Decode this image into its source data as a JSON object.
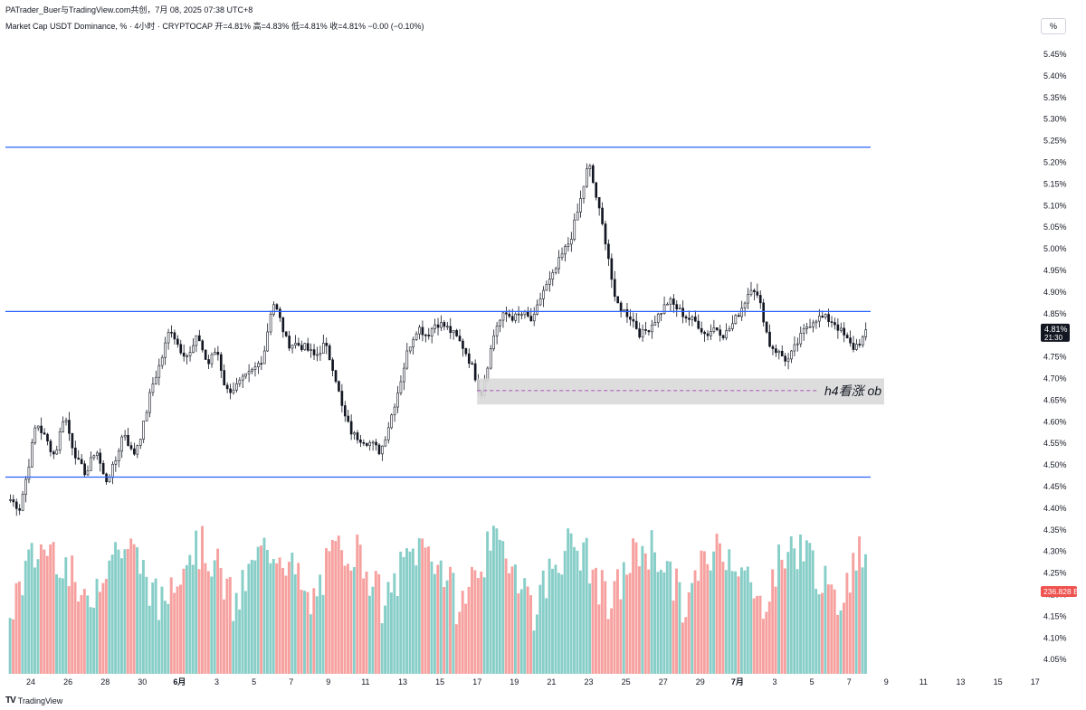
{
  "header": {
    "line1": "PATrader_Buer与TradingView.com共创，7月 08, 2025 07:38 UTC+8",
    "line2": "Market Cap USDT Dominance, % · 4小时 · CRYPTOCAP  开=4.81%  高=4.83%  低=4.81%  收=4.81%  −0.00 (−0.10%)"
  },
  "footer": {
    "brand": "TradingView",
    "logo_glyph": "TV"
  },
  "unit_label": "%",
  "colors": {
    "line": "#2962ff",
    "up_vol": "#26a69a",
    "down_vol": "#ef5350",
    "candle": "#131722",
    "zone": "#d9d9d9",
    "dashed": "#9c27b0",
    "price_tag": "#131722",
    "vol_tag": "#ef5350"
  },
  "chart_data": {
    "type": "candlestick",
    "symbol": "Market Cap USDT Dominance",
    "interval": "4小时",
    "exchange": "CRYPTOCAP",
    "ohlc_last": {
      "open": 4.81,
      "high": 4.83,
      "low": 4.81,
      "close": 4.81,
      "change": "−0.00",
      "change_pct": "−0.10%"
    },
    "ylim": [
      4.025,
      5.5
    ],
    "y_ticks": [
      "5.45%",
      "5.40%",
      "5.35%",
      "5.30%",
      "5.25%",
      "5.20%",
      "5.15%",
      "5.10%",
      "5.05%",
      "5.00%",
      "4.95%",
      "4.90%",
      "4.85%",
      "4.80%",
      "4.75%",
      "4.70%",
      "4.65%",
      "4.60%",
      "4.55%",
      "4.50%",
      "4.45%",
      "4.40%",
      "4.35%",
      "4.30%",
      "4.25%",
      "4.20%",
      "4.15%",
      "4.10%",
      "4.05%"
    ],
    "x_ticks": [
      {
        "label": "24",
        "day": 24
      },
      {
        "label": "26",
        "day": 26
      },
      {
        "label": "28",
        "day": 28
      },
      {
        "label": "30",
        "day": 30
      },
      {
        "label": "6月",
        "day": 32,
        "bold": true
      },
      {
        "label": "3",
        "day": 34
      },
      {
        "label": "5",
        "day": 36
      },
      {
        "label": "7",
        "day": 38
      },
      {
        "label": "9",
        "day": 40
      },
      {
        "label": "11",
        "day": 42
      },
      {
        "label": "13",
        "day": 44
      },
      {
        "label": "15",
        "day": 46
      },
      {
        "label": "17",
        "day": 48
      },
      {
        "label": "19",
        "day": 50
      },
      {
        "label": "21",
        "day": 52
      },
      {
        "label": "23",
        "day": 54
      },
      {
        "label": "25",
        "day": 56
      },
      {
        "label": "27",
        "day": 58
      },
      {
        "label": "29",
        "day": 60
      },
      {
        "label": "7月",
        "day": 62,
        "bold": true
      },
      {
        "label": "3",
        "day": 64
      },
      {
        "label": "5",
        "day": 66
      },
      {
        "label": "7",
        "day": 68
      },
      {
        "label": "9",
        "day": 70
      },
      {
        "label": "11",
        "day": 72
      },
      {
        "label": "13",
        "day": 74
      },
      {
        "label": "15",
        "day": 76
      },
      {
        "label": "17",
        "day": 78
      }
    ],
    "day_range": [
      22.7,
      79
    ],
    "series": [
      {
        "day": 22.9,
        "close": 4.42
      },
      {
        "day": 23.4,
        "close": 4.4
      },
      {
        "day": 23.8,
        "close": 4.48
      },
      {
        "day": 24.3,
        "close": 4.6
      },
      {
        "day": 24.8,
        "close": 4.56
      },
      {
        "day": 25.3,
        "close": 4.52
      },
      {
        "day": 25.8,
        "close": 4.62
      },
      {
        "day": 26.2,
        "close": 4.55
      },
      {
        "day": 26.6,
        "close": 4.5
      },
      {
        "day": 27.0,
        "close": 4.48
      },
      {
        "day": 27.5,
        "close": 4.54
      },
      {
        "day": 28.0,
        "close": 4.46
      },
      {
        "day": 28.5,
        "close": 4.5
      },
      {
        "day": 29.0,
        "close": 4.58
      },
      {
        "day": 29.5,
        "close": 4.52
      },
      {
        "day": 30.0,
        "close": 4.58
      },
      {
        "day": 30.5,
        "close": 4.68
      },
      {
        "day": 31.0,
        "close": 4.74
      },
      {
        "day": 31.5,
        "close": 4.82
      },
      {
        "day": 32.0,
        "close": 4.77
      },
      {
        "day": 32.5,
        "close": 4.75
      },
      {
        "day": 33.0,
        "close": 4.8
      },
      {
        "day": 33.5,
        "close": 4.73
      },
      {
        "day": 34.0,
        "close": 4.77
      },
      {
        "day": 34.5,
        "close": 4.67
      },
      {
        "day": 35.0,
        "close": 4.68
      },
      {
        "day": 35.5,
        "close": 4.7
      },
      {
        "day": 36.0,
        "close": 4.72
      },
      {
        "day": 36.5,
        "close": 4.75
      },
      {
        "day": 37.0,
        "close": 4.88
      },
      {
        "day": 37.3,
        "close": 4.85
      },
      {
        "day": 37.8,
        "close": 4.78
      },
      {
        "day": 38.3,
        "close": 4.78
      },
      {
        "day": 38.8,
        "close": 4.77
      },
      {
        "day": 39.3,
        "close": 4.75
      },
      {
        "day": 39.8,
        "close": 4.78
      },
      {
        "day": 40.3,
        "close": 4.72
      },
      {
        "day": 40.8,
        "close": 4.62
      },
      {
        "day": 41.3,
        "close": 4.57
      },
      {
        "day": 41.8,
        "close": 4.56
      },
      {
        "day": 42.3,
        "close": 4.55
      },
      {
        "day": 42.8,
        "close": 4.53
      },
      {
        "day": 43.3,
        "close": 4.6
      },
      {
        "day": 43.8,
        "close": 4.68
      },
      {
        "day": 44.3,
        "close": 4.77
      },
      {
        "day": 44.8,
        "close": 4.82
      },
      {
        "day": 45.3,
        "close": 4.8
      },
      {
        "day": 45.8,
        "close": 4.83
      },
      {
        "day": 46.3,
        "close": 4.82
      },
      {
        "day": 46.8,
        "close": 4.8
      },
      {
        "day": 47.3,
        "close": 4.77
      },
      {
        "day": 47.8,
        "close": 4.72
      },
      {
        "day": 48.2,
        "close": 4.66
      },
      {
        "day": 48.6,
        "close": 4.74
      },
      {
        "day": 49.0,
        "close": 4.82
      },
      {
        "day": 49.5,
        "close": 4.85
      },
      {
        "day": 50.0,
        "close": 4.84
      },
      {
        "day": 50.5,
        "close": 4.85
      },
      {
        "day": 51.0,
        "close": 4.83
      },
      {
        "day": 51.5,
        "close": 4.9
      },
      {
        "day": 52.0,
        "close": 4.93
      },
      {
        "day": 52.5,
        "close": 4.98
      },
      {
        "day": 53.0,
        "close": 5.02
      },
      {
        "day": 53.5,
        "close": 5.1
      },
      {
        "day": 54.0,
        "close": 5.2
      },
      {
        "day": 54.5,
        "close": 5.1
      },
      {
        "day": 55.0,
        "close": 5.0
      },
      {
        "day": 55.4,
        "close": 4.88
      },
      {
        "day": 55.8,
        "close": 4.86
      },
      {
        "day": 56.3,
        "close": 4.84
      },
      {
        "day": 56.8,
        "close": 4.8
      },
      {
        "day": 57.3,
        "close": 4.82
      },
      {
        "day": 57.8,
        "close": 4.85
      },
      {
        "day": 58.3,
        "close": 4.88
      },
      {
        "day": 58.8,
        "close": 4.86
      },
      {
        "day": 59.3,
        "close": 4.84
      },
      {
        "day": 59.8,
        "close": 4.83
      },
      {
        "day": 60.3,
        "close": 4.8
      },
      {
        "day": 60.8,
        "close": 4.82
      },
      {
        "day": 61.3,
        "close": 4.8
      },
      {
        "day": 61.8,
        "close": 4.83
      },
      {
        "day": 62.3,
        "close": 4.87
      },
      {
        "day": 62.8,
        "close": 4.92
      },
      {
        "day": 63.3,
        "close": 4.86
      },
      {
        "day": 63.7,
        "close": 4.78
      },
      {
        "day": 64.2,
        "close": 4.76
      },
      {
        "day": 64.7,
        "close": 4.74
      },
      {
        "day": 65.2,
        "close": 4.78
      },
      {
        "day": 65.7,
        "close": 4.82
      },
      {
        "day": 66.2,
        "close": 4.84
      },
      {
        "day": 66.7,
        "close": 4.84
      },
      {
        "day": 67.2,
        "close": 4.83
      },
      {
        "day": 67.7,
        "close": 4.8
      },
      {
        "day": 68.2,
        "close": 4.77
      },
      {
        "day": 68.7,
        "close": 4.79
      },
      {
        "day": 69.0,
        "close": 4.81
      }
    ],
    "volume_label": "236.828 B",
    "horizontal_lines": [
      5.235,
      4.855,
      4.472
    ],
    "annotation_zone": {
      "top": 4.7,
      "bottom": 4.64,
      "mid": 4.672,
      "label": "h4看涨 ob"
    },
    "last_price_label": "4.81%",
    "countdown_label": "21:30"
  }
}
